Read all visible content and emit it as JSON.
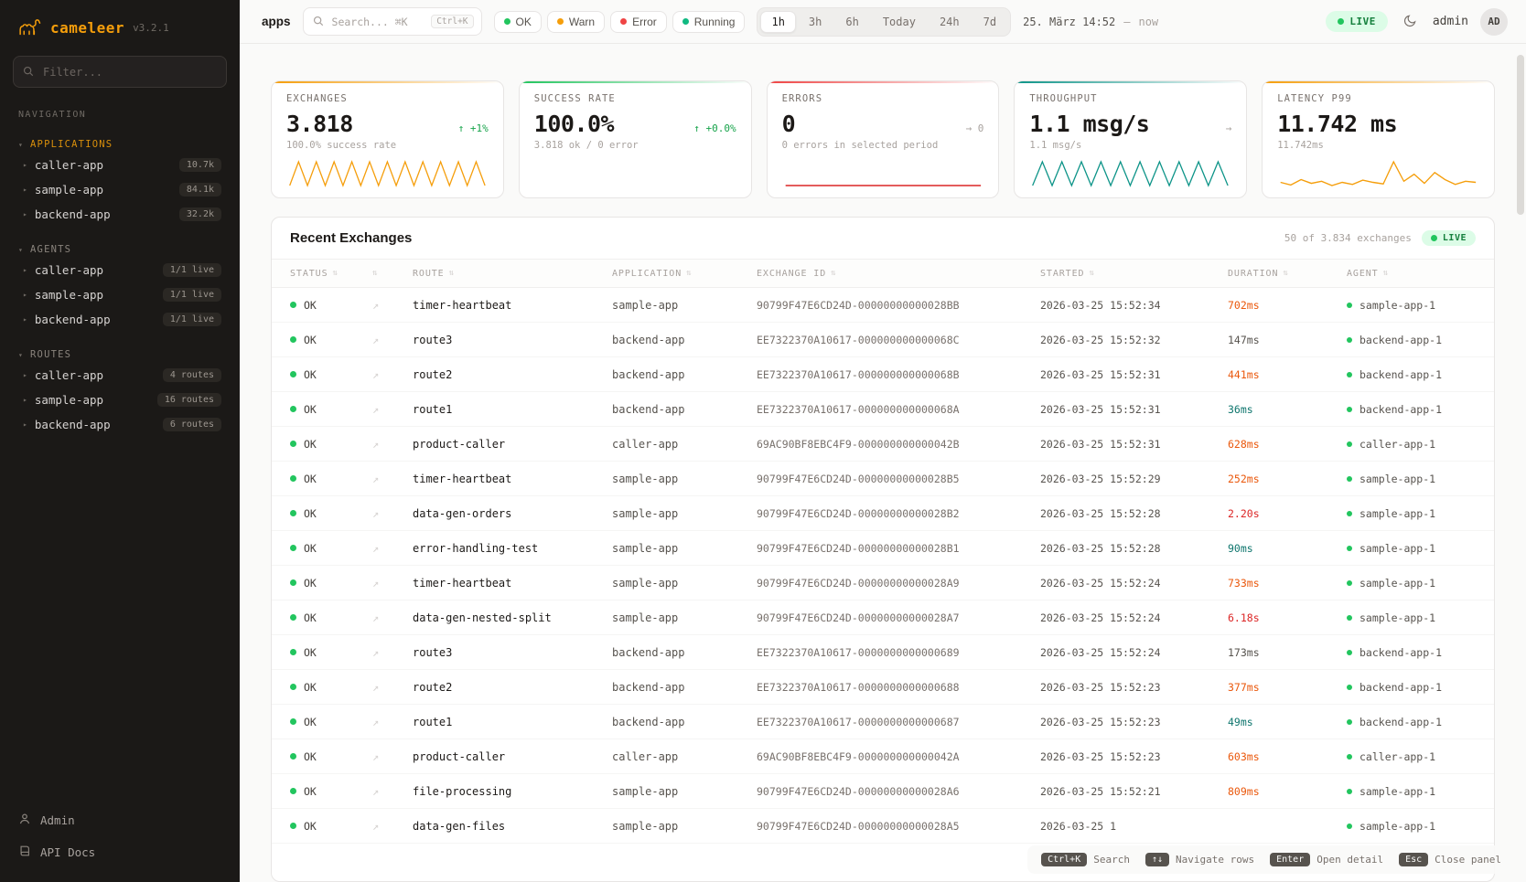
{
  "brand": {
    "name": "cameleer",
    "version": "v3.2.1"
  },
  "icons": {
    "section_caret": "▾",
    "item_caret": "▸",
    "sort": "⇅",
    "open_link": "↗"
  },
  "sidebar": {
    "filter_placeholder": "Filter...",
    "navigation_label": "NAVIGATION",
    "sections": [
      {
        "label": "APPLICATIONS",
        "accent": true,
        "items": [
          {
            "label": "caller-app",
            "badge": "10.7k"
          },
          {
            "label": "sample-app",
            "badge": "84.1k"
          },
          {
            "label": "backend-app",
            "badge": "32.2k"
          }
        ]
      },
      {
        "label": "AGENTS",
        "accent": false,
        "items": [
          {
            "label": "caller-app",
            "badge": "1/1 live"
          },
          {
            "label": "sample-app",
            "badge": "1/1 live"
          },
          {
            "label": "backend-app",
            "badge": "1/1 live"
          }
        ]
      },
      {
        "label": "ROUTES",
        "accent": false,
        "items": [
          {
            "label": "caller-app",
            "badge": "4 routes"
          },
          {
            "label": "sample-app",
            "badge": "16 routes"
          },
          {
            "label": "backend-app",
            "badge": "6 routes"
          }
        ]
      }
    ],
    "footer": [
      {
        "label": "Admin",
        "icon": "user-icon"
      },
      {
        "label": "API Docs",
        "icon": "book-icon"
      }
    ]
  },
  "topbar": {
    "context_label": "apps",
    "search": {
      "placeholder": "Search... ⌘K",
      "kbd": "Ctrl+K"
    },
    "status_filters": [
      {
        "label": "OK",
        "color": "#22c55e"
      },
      {
        "label": "Warn",
        "color": "#f59e0b"
      },
      {
        "label": "Error",
        "color": "#ef4444"
      },
      {
        "label": "Running",
        "color": "#10b981"
      }
    ],
    "time_ranges": [
      "1h",
      "3h",
      "6h",
      "Today",
      "24h",
      "7d"
    ],
    "active_range": "1h",
    "date_label": "25. März 14:52",
    "date_separator": "—",
    "date_now": "now",
    "live_label": "LIVE",
    "user_label": "admin",
    "avatar_initials": "AD"
  },
  "stats": [
    {
      "id": "exchanges",
      "title": "EXCHANGES",
      "value": "3.818",
      "delta": "↑ +1%",
      "delta_tone": "up",
      "sub": "100.0% success rate",
      "accent": "#f59e0b",
      "spark": {
        "color": "#f59e0b",
        "values": [
          1.5,
          8.5,
          1.5,
          8.5,
          1.5,
          8.5,
          1.5,
          8.5,
          1.5,
          8.5,
          1.5,
          8.5,
          1.5,
          8.5,
          1.5,
          8.5,
          1.5,
          8.5,
          1.5,
          8.5,
          1.5,
          8.5,
          1.5
        ]
      }
    },
    {
      "id": "success-rate",
      "title": "SUCCESS RATE",
      "value": "100.0%",
      "delta": "↑ +0.0%",
      "delta_tone": "up",
      "sub": "3.818 ok / 0 error",
      "accent": "#22c55e",
      "spark": null
    },
    {
      "id": "errors",
      "title": "ERRORS",
      "value": "0",
      "delta": "→ 0",
      "delta_tone": "neutral",
      "sub": "0 errors in selected period",
      "accent": "#ef4444",
      "spark": {
        "color": "#dc2626",
        "values": [
          0,
          0
        ]
      }
    },
    {
      "id": "throughput",
      "title": "THROUGHPUT",
      "value": "1.1 msg/s",
      "delta": "→",
      "delta_tone": "neutral",
      "sub": "1.1 msg/s",
      "accent": "#0d9488",
      "spark": {
        "color": "#0d9488",
        "values": [
          1.5,
          8.5,
          1.5,
          8.5,
          1.5,
          8.5,
          1.5,
          8.5,
          1.5,
          8.5,
          1.5,
          8.5,
          1.5,
          8.5,
          1.5,
          8.5,
          1.5,
          8.5,
          1.5,
          8.5,
          1.5
        ]
      }
    },
    {
      "id": "latency-p99",
      "title": "LATENCY P99",
      "value": "11.742 ms",
      "delta": "",
      "delta_tone": "neutral",
      "sub": "11.742ms",
      "accent": "#f59e0b",
      "spark": {
        "color": "#f59e0b",
        "values": [
          5,
          4.5,
          5.5,
          4.8,
          5.2,
          4.4,
          5,
          4.6,
          5.4,
          5,
          4.7,
          8.8,
          5.2,
          6.5,
          4.8,
          6.8,
          5.5,
          4.6,
          5.2,
          5
        ]
      }
    }
  ],
  "table": {
    "title": "Recent Exchanges",
    "count_label": "50 of 3.834 exchanges",
    "live_label": "LIVE",
    "columns": [
      "STATUS",
      "",
      "ROUTE",
      "APPLICATION",
      "EXCHANGE ID",
      "STARTED",
      "DURATION",
      "AGENT"
    ],
    "rows": [
      {
        "status": "OK",
        "route": "timer-heartbeat",
        "app": "sample-app",
        "id": "90799F47E6CD24D-00000000000028BB",
        "started": "2026-03-25 15:52:34",
        "duration": "702ms",
        "level": "warn",
        "agent": "sample-app-1"
      },
      {
        "status": "OK",
        "route": "route3",
        "app": "backend-app",
        "id": "EE7322370A10617-000000000000068C",
        "started": "2026-03-25 15:52:32",
        "duration": "147ms",
        "level": "normal",
        "agent": "backend-app-1"
      },
      {
        "status": "OK",
        "route": "route2",
        "app": "backend-app",
        "id": "EE7322370A10617-000000000000068B",
        "started": "2026-03-25 15:52:31",
        "duration": "441ms",
        "level": "warn",
        "agent": "backend-app-1"
      },
      {
        "status": "OK",
        "route": "route1",
        "app": "backend-app",
        "id": "EE7322370A10617-000000000000068A",
        "started": "2026-03-25 15:52:31",
        "duration": "36ms",
        "level": "fast",
        "agent": "backend-app-1"
      },
      {
        "status": "OK",
        "route": "product-caller",
        "app": "caller-app",
        "id": "69AC90BF8EBC4F9-000000000000042B",
        "started": "2026-03-25 15:52:31",
        "duration": "628ms",
        "level": "warn",
        "agent": "caller-app-1"
      },
      {
        "status": "OK",
        "route": "timer-heartbeat",
        "app": "sample-app",
        "id": "90799F47E6CD24D-00000000000028B5",
        "started": "2026-03-25 15:52:29",
        "duration": "252ms",
        "level": "warn",
        "agent": "sample-app-1"
      },
      {
        "status": "OK",
        "route": "data-gen-orders",
        "app": "sample-app",
        "id": "90799F47E6CD24D-00000000000028B2",
        "started": "2026-03-25 15:52:28",
        "duration": "2.20s",
        "level": "slow",
        "agent": "sample-app-1"
      },
      {
        "status": "OK",
        "route": "error-handling-test",
        "app": "sample-app",
        "id": "90799F47E6CD24D-00000000000028B1",
        "started": "2026-03-25 15:52:28",
        "duration": "90ms",
        "level": "fast",
        "agent": "sample-app-1"
      },
      {
        "status": "OK",
        "route": "timer-heartbeat",
        "app": "sample-app",
        "id": "90799F47E6CD24D-00000000000028A9",
        "started": "2026-03-25 15:52:24",
        "duration": "733ms",
        "level": "warn",
        "agent": "sample-app-1"
      },
      {
        "status": "OK",
        "route": "data-gen-nested-split",
        "app": "sample-app",
        "id": "90799F47E6CD24D-00000000000028A7",
        "started": "2026-03-25 15:52:24",
        "duration": "6.18s",
        "level": "slow",
        "agent": "sample-app-1"
      },
      {
        "status": "OK",
        "route": "route3",
        "app": "backend-app",
        "id": "EE7322370A10617-0000000000000689",
        "started": "2026-03-25 15:52:24",
        "duration": "173ms",
        "level": "normal",
        "agent": "backend-app-1"
      },
      {
        "status": "OK",
        "route": "route2",
        "app": "backend-app",
        "id": "EE7322370A10617-0000000000000688",
        "started": "2026-03-25 15:52:23",
        "duration": "377ms",
        "level": "warn",
        "agent": "backend-app-1"
      },
      {
        "status": "OK",
        "route": "route1",
        "app": "backend-app",
        "id": "EE7322370A10617-0000000000000687",
        "started": "2026-03-25 15:52:23",
        "duration": "49ms",
        "level": "fast",
        "agent": "backend-app-1"
      },
      {
        "status": "OK",
        "route": "product-caller",
        "app": "caller-app",
        "id": "69AC90BF8EBC4F9-000000000000042A",
        "started": "2026-03-25 15:52:23",
        "duration": "603ms",
        "level": "warn",
        "agent": "caller-app-1"
      },
      {
        "status": "OK",
        "route": "file-processing",
        "app": "sample-app",
        "id": "90799F47E6CD24D-00000000000028A6",
        "started": "2026-03-25 15:52:21",
        "duration": "809ms",
        "level": "warn",
        "agent": "sample-app-1"
      },
      {
        "status": "OK",
        "route": "data-gen-files",
        "app": "sample-app",
        "id": "90799F47E6CD24D-00000000000028A5",
        "started": "2026-03-25 1",
        "duration": "",
        "level": "normal",
        "agent": "sample-app-1"
      }
    ]
  },
  "hints": [
    {
      "keys": "Ctrl+K",
      "label": "Search"
    },
    {
      "keys": "↑↓",
      "label": "Navigate rows"
    },
    {
      "keys": "Enter",
      "label": "Open detail"
    },
    {
      "keys": "Esc",
      "label": "Close panel"
    }
  ]
}
